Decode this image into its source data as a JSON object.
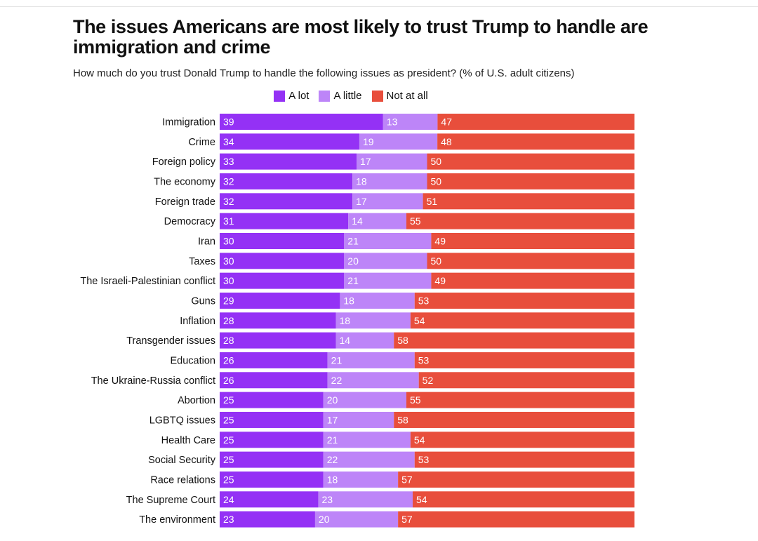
{
  "title": "The issues Americans are most likely to trust Trump to handle are immigration and crime",
  "subtitle": "How much do you trust Donald Trump to handle the following issues as president? (% of U.S. adult citizens)",
  "chart_data": {
    "type": "bar",
    "orientation": "horizontal",
    "stacked": true,
    "title": "The issues Americans are most likely to trust Trump to handle are immigration and crime",
    "subtitle": "How much do you trust Donald Trump to handle the following issues as president? (% of U.S. adult citizens)",
    "xlabel": "",
    "ylabel": "",
    "xlim": [
      0,
      100
    ],
    "grid": false,
    "legend_position": "top-center",
    "categories": [
      "Immigration",
      "Crime",
      "Foreign policy",
      "The economy",
      "Foreign trade",
      "Democracy",
      "Iran",
      "Taxes",
      "The Israeli-Palestinian conflict",
      "Guns",
      "Inflation",
      "Transgender issues",
      "Education",
      "The Ukraine-Russia conflict",
      "Abortion",
      "LGBTQ issues",
      "Health Care",
      "Social Security",
      "Race relations",
      "The Supreme Court",
      "The environment"
    ],
    "series": [
      {
        "name": "A lot",
        "color": "#9431f5",
        "values": [
          39,
          34,
          33,
          32,
          32,
          31,
          30,
          30,
          30,
          29,
          28,
          28,
          26,
          26,
          25,
          25,
          25,
          25,
          25,
          24,
          23
        ]
      },
      {
        "name": "A little",
        "color": "#bd85f8",
        "values": [
          13,
          19,
          17,
          18,
          17,
          14,
          21,
          20,
          21,
          18,
          18,
          14,
          21,
          22,
          20,
          17,
          21,
          22,
          18,
          23,
          20
        ]
      },
      {
        "name": "Not at all",
        "color": "#e84e3c",
        "values": [
          47,
          48,
          50,
          50,
          51,
          55,
          49,
          50,
          49,
          53,
          54,
          58,
          53,
          52,
          55,
          58,
          54,
          53,
          57,
          54,
          57
        ]
      }
    ]
  }
}
